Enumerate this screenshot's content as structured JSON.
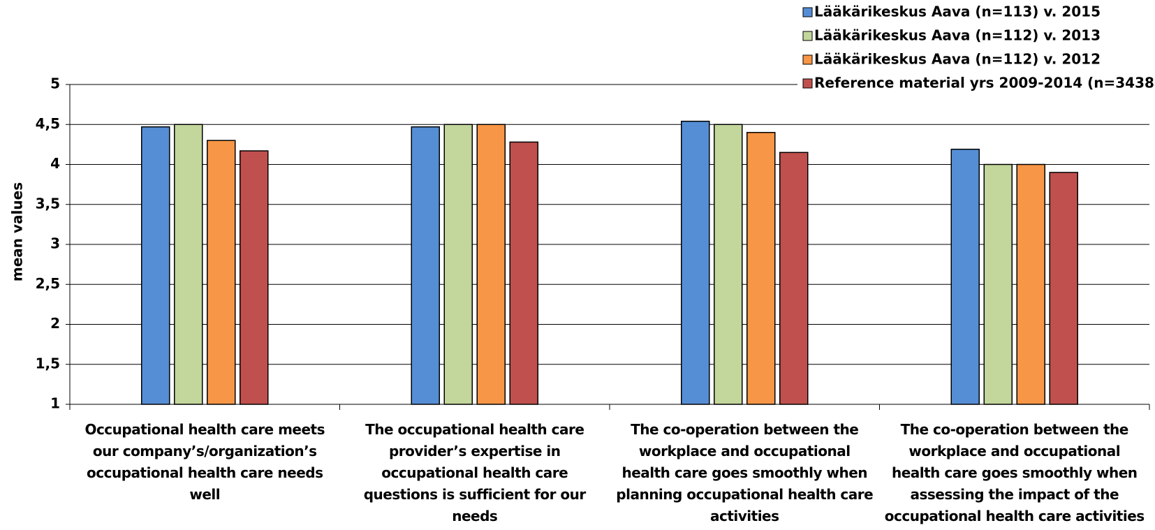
{
  "chart_data": {
    "type": "bar",
    "y_label": "mean values",
    "categories": [
      "Occupational health care meets our  company’s/organization’s occupational health care needs well",
      "The occupational health care provider’s expertise in occupational health care questions is sufficient for our needs",
      "The co-operation between the workplace and occupational health care goes smoothly when planning occupational health care activities",
      "The co-operation between the workplace and occupational health care goes smoothly when assessing the impact of the occupational health care activities"
    ],
    "series": [
      {
        "name": "Lääkärikeskus Aava (n=113) v. 2015",
        "color": "#558ed5",
        "values": [
          4.47,
          4.47,
          4.54,
          4.19
        ]
      },
      {
        "name": "Lääkärikeskus Aava (n=112) v. 2013",
        "color": "#c3d69b",
        "values": [
          4.5,
          4.5,
          4.5,
          4.0
        ]
      },
      {
        "name": "Lääkärikeskus Aava (n=112) v. 2012",
        "color": "#f79646",
        "values": [
          4.3,
          4.5,
          4.4,
          4.0
        ]
      },
      {
        "name": "Reference material  yrs 2009-2014 (n=3438)",
        "color": "#c0504d",
        "values": [
          4.17,
          4.28,
          4.15,
          3.9
        ]
      }
    ],
    "ylim": [
      1,
      5
    ],
    "yticks": [
      1,
      {
        "value": 1.5,
        "label": "1,5"
      },
      2,
      {
        "value": 2.5,
        "label": "2,5"
      },
      3,
      {
        "value": 3.5,
        "label": "3,5"
      },
      4,
      {
        "value": 4.5,
        "label": "4,5"
      },
      5
    ],
    "grid": true,
    "legend": "top-right"
  }
}
